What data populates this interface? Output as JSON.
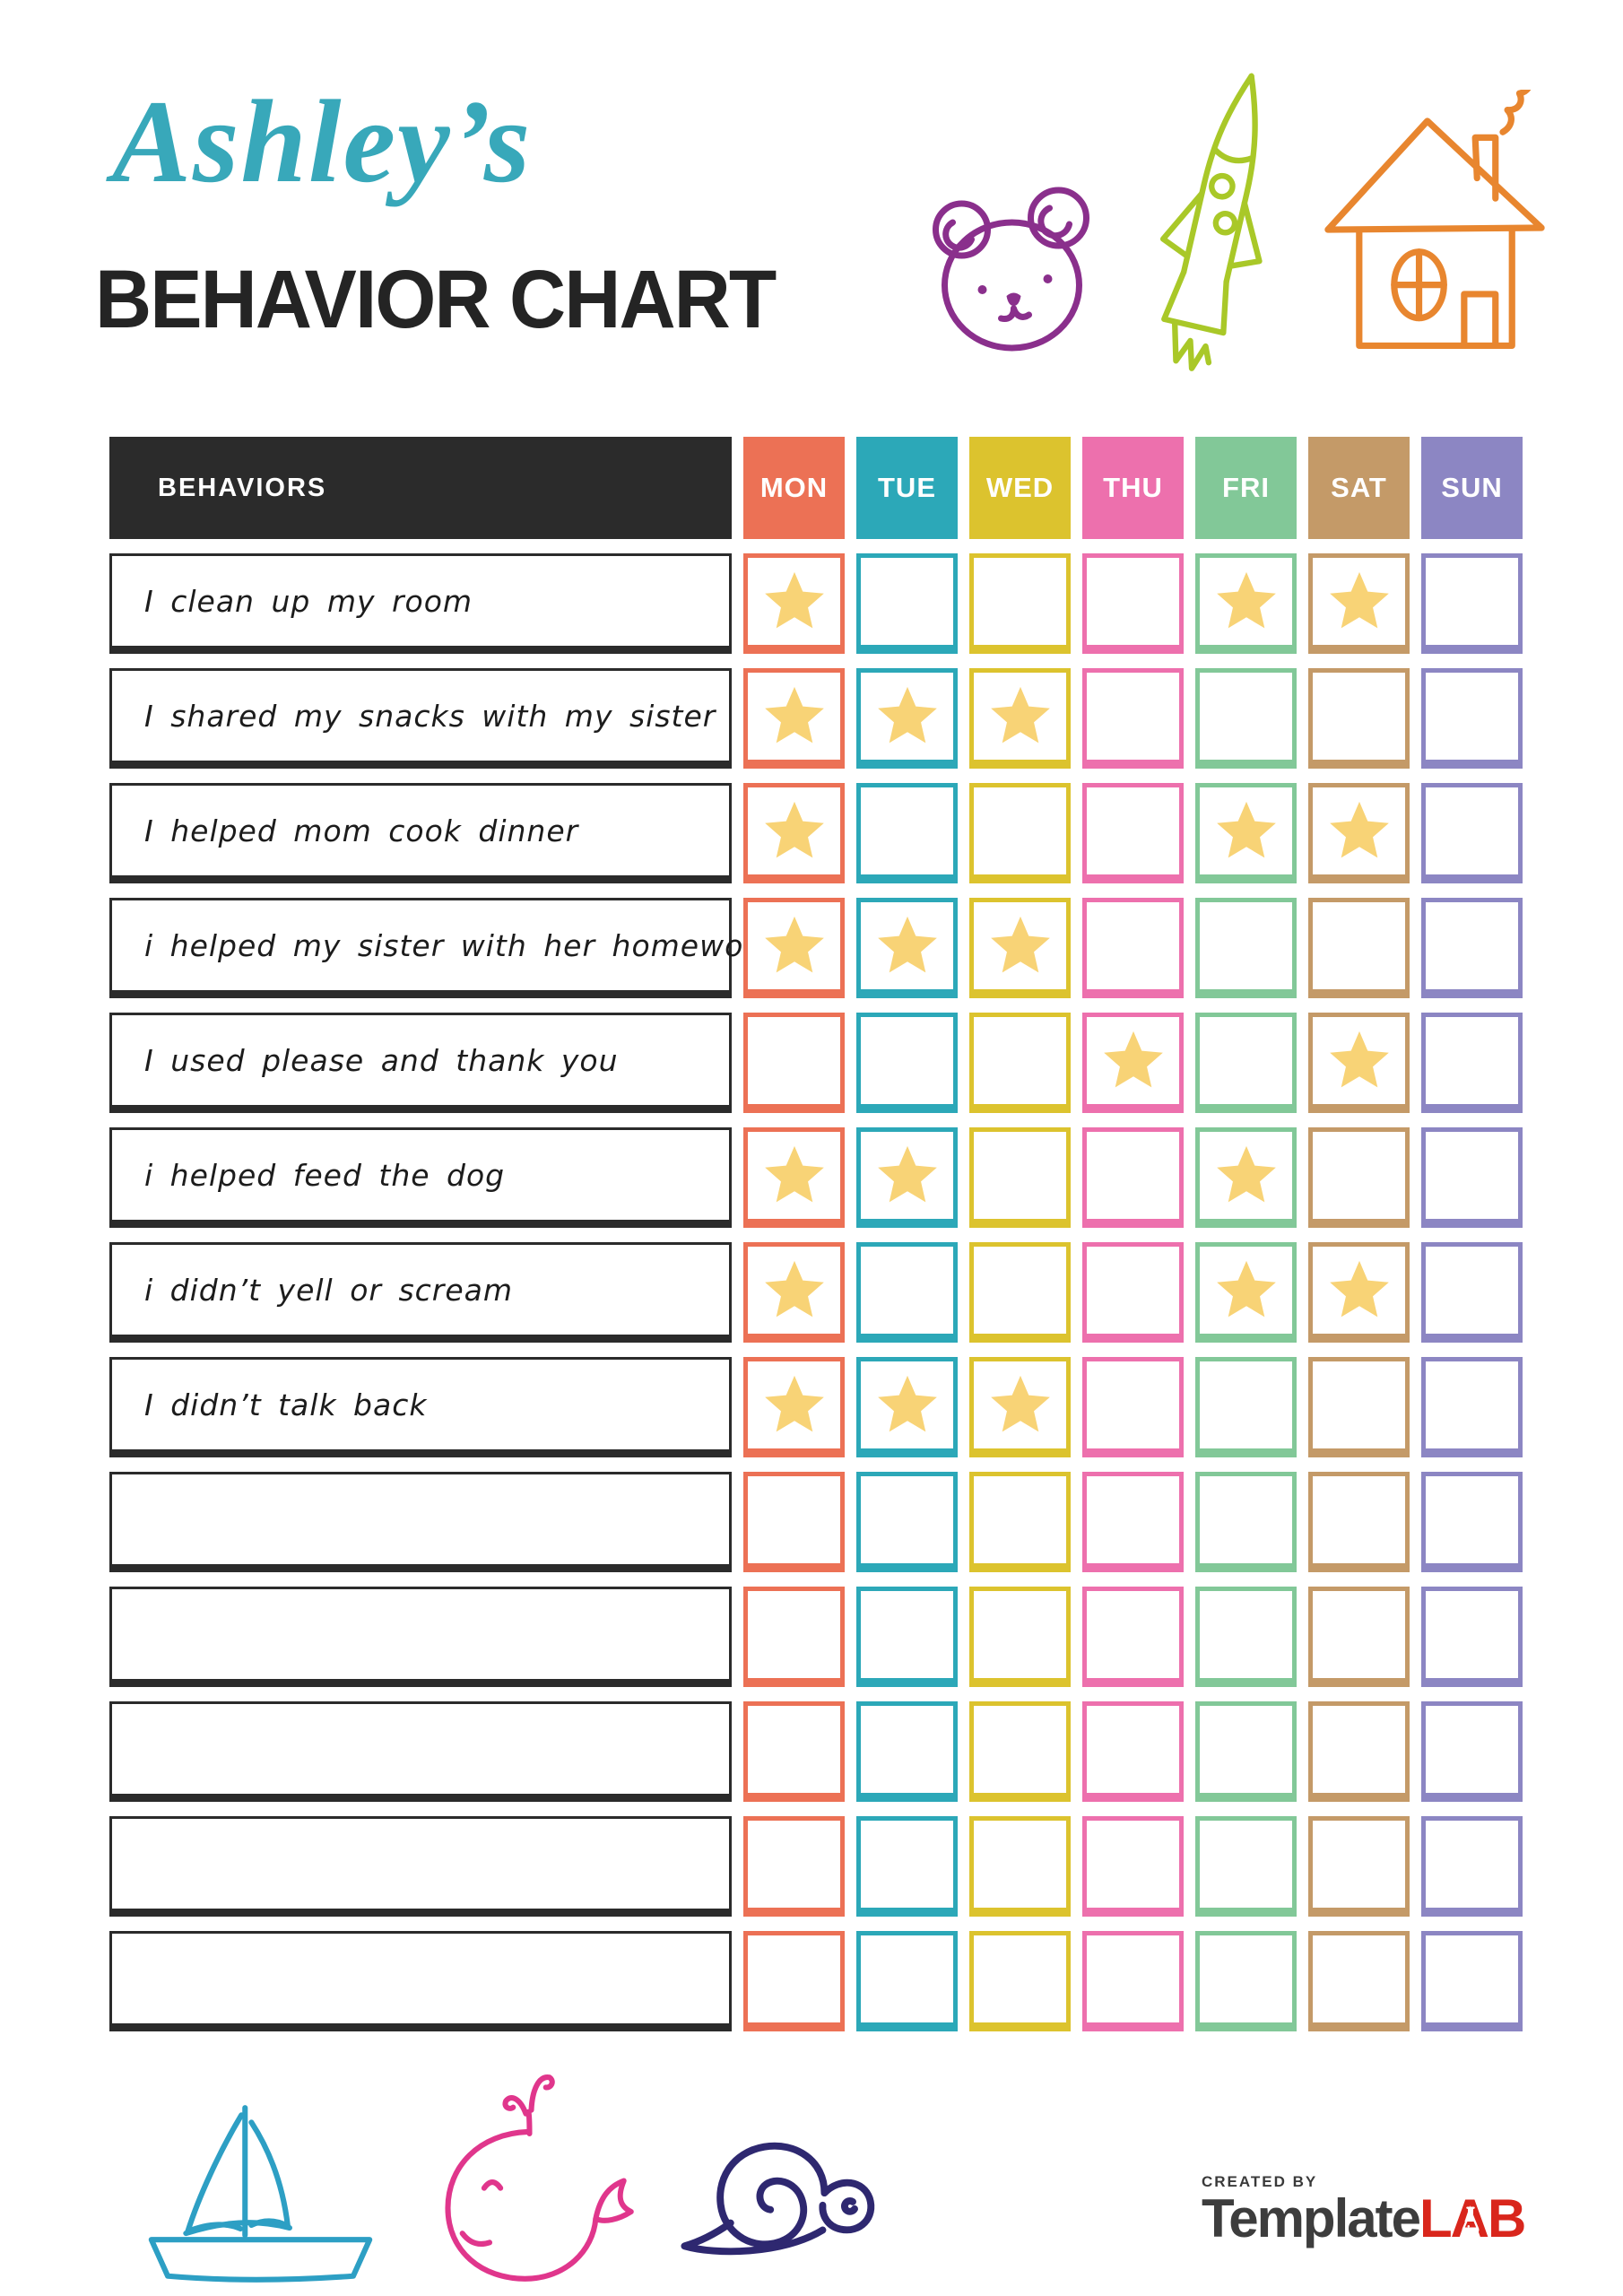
{
  "header": {
    "name": "Ashley’s",
    "title": "BEHAVIOR CHART"
  },
  "table": {
    "behaviors_header": "BEHAVIORS",
    "days": [
      {
        "label": "MON",
        "color": "#EC7155"
      },
      {
        "label": "TUE",
        "color": "#2CA8B8"
      },
      {
        "label": "WED",
        "color": "#DCC32E"
      },
      {
        "label": "THU",
        "color": "#ED70AD"
      },
      {
        "label": "FRI",
        "color": "#82C898"
      },
      {
        "label": "SAT",
        "color": "#C49A68"
      },
      {
        "label": "SUN",
        "color": "#8C86C3"
      }
    ],
    "rows": [
      {
        "behavior": "I clean up my room",
        "stars": [
          "MON",
          "FRI",
          "SAT"
        ]
      },
      {
        "behavior": "I shared my snacks with my sister",
        "stars": [
          "MON",
          "TUE",
          "WED"
        ]
      },
      {
        "behavior": "I helped mom cook dinner",
        "stars": [
          "MON",
          "FRI",
          "SAT"
        ]
      },
      {
        "behavior": "i helped my sister with her homework",
        "stars": [
          "MON",
          "TUE",
          "WED"
        ]
      },
      {
        "behavior": "I used please and thank you",
        "stars": [
          "THU",
          "SAT"
        ]
      },
      {
        "behavior": "i helped feed the dog",
        "stars": [
          "MON",
          "TUE",
          "FRI"
        ]
      },
      {
        "behavior": "i didn’t yell or scream",
        "stars": [
          "MON",
          "FRI",
          "SAT"
        ]
      },
      {
        "behavior": "I didn’t talk back",
        "stars": [
          "MON",
          "TUE",
          "WED"
        ]
      },
      {
        "behavior": "",
        "stars": []
      },
      {
        "behavior": "",
        "stars": []
      },
      {
        "behavior": "",
        "stars": []
      },
      {
        "behavior": "",
        "stars": []
      },
      {
        "behavior": "",
        "stars": []
      }
    ]
  },
  "colors": {
    "star": "#F8D376",
    "header_bg": "#2B2B2B",
    "title_script": "#38A8BA",
    "title_main": "#242424",
    "bear_doodle": "#8A2F8C",
    "rocket_doodle": "#A9C828",
    "house_doodle": "#E8862F",
    "sailboat_doodle": "#2D9FC4",
    "whale_doodle": "#E0368C",
    "snail_doodle": "#2E2870",
    "brand_accent": "#D9261C"
  },
  "footer": {
    "created_by": "CREATED BY",
    "brand_main": "Template",
    "brand_accent": "LAB"
  }
}
